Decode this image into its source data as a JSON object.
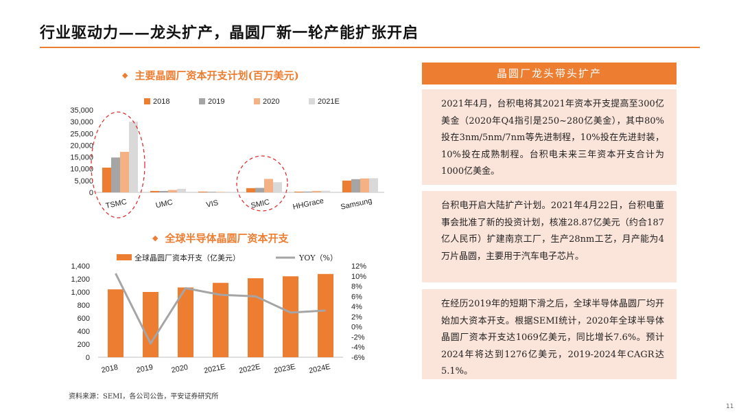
{
  "page": {
    "title": "行业驱动力——龙头扩产，晶圆厂新一轮产能扩张开启",
    "source": "资料来源：SEMI，各公司公告，平安证券研究所",
    "page_number": "11"
  },
  "colors": {
    "accent": "#ED7D31",
    "s2018": "#ED7D31",
    "s2019": "#A5A5A5",
    "s2020": "#F4B183",
    "s2021E": "#D9D9D9",
    "yoy": "#A5A5A5",
    "panel_bg": "#FBE4DA",
    "highlight": "#E03030"
  },
  "chart_data": [
    {
      "type": "bar",
      "title": "主要晶圆厂资本开支计划(百万美元)",
      "categories": [
        "TSMC",
        "UMC",
        "VIS",
        "SMIC",
        "HHGrace",
        "Samsung"
      ],
      "series": [
        {
          "name": "2018",
          "values": [
            10500,
            600,
            300,
            1800,
            300,
            5000
          ]
        },
        {
          "name": "2019",
          "values": [
            14800,
            600,
            250,
            1900,
            350,
            5600
          ]
        },
        {
          "name": "2020",
          "values": [
            17200,
            1000,
            200,
            5700,
            600,
            5900
          ]
        },
        {
          "name": "2021E",
          "values": [
            30000,
            1500,
            250,
            4300,
            700,
            6000
          ]
        }
      ],
      "ylim": [
        0,
        35000
      ],
      "yticks": [
        "0",
        "5,000",
        "10,000",
        "15,000",
        "20,000",
        "25,000",
        "30,000",
        "35,000"
      ],
      "legend": "top",
      "highlighted": [
        "TSMC",
        "SMIC"
      ]
    },
    {
      "type": "bar",
      "title": "全球半导体晶圆厂资本开支",
      "categories": [
        "2018",
        "2019",
        "2020",
        "2021E",
        "2022E",
        "2023E",
        "2024E"
      ],
      "series": [
        {
          "name": "全球晶圆厂资本开支（亿美元）",
          "type": "bar",
          "axis": "left",
          "values": [
            1040,
            1000,
            1069,
            1140,
            1210,
            1240,
            1276
          ]
        },
        {
          "name": "YOY（%）",
          "type": "line",
          "axis": "right",
          "values": [
            10.5,
            -3.3,
            7.6,
            6.3,
            6.0,
            2.8,
            3.2
          ]
        }
      ],
      "ylim": [
        0,
        1400
      ],
      "yticks": [
        "0",
        "200",
        "400",
        "600",
        "800",
        "1,000",
        "1,200",
        "1,400"
      ],
      "y2lim": [
        -6,
        12
      ],
      "y2ticks": [
        "-6%",
        "-4%",
        "-2%",
        "0%",
        "2%",
        "4%",
        "6%",
        "8%",
        "10%",
        "12%"
      ],
      "legend": "top"
    }
  ],
  "panels": {
    "header": "晶圆厂龙头带头扩产",
    "items": [
      {
        "text": "2021年4月，台积电将其2021年资本开支提高至300亿美金（2020年Q4指引是250~280亿美金），其中80%投在3nm/5nm/7nm等先进制程，10%投在先进封装，10%投在成熟制程。台积电未来三年资本开支合计为1000亿美金。"
      },
      {
        "text": "台积电开启大陆扩产计划。2021年4月22日，台积电董事会批准了新的投资计划，核准28.87亿美元（约合187亿人民币）扩建南京工厂，生产28nm工艺，月产能为4万片晶圆，主要用于汽车电子芯片。"
      },
      {
        "text": "在经历2019年的短期下滑之后，全球半导体晶圆厂均开始加大资本开支。根据SEMI统计，2020年全球半导体晶圆厂资本开支达1069亿美元，同比增长7.6%。预计2024年将达到1276亿美元，2019-2024年CAGR达5.1%。"
      }
    ]
  }
}
